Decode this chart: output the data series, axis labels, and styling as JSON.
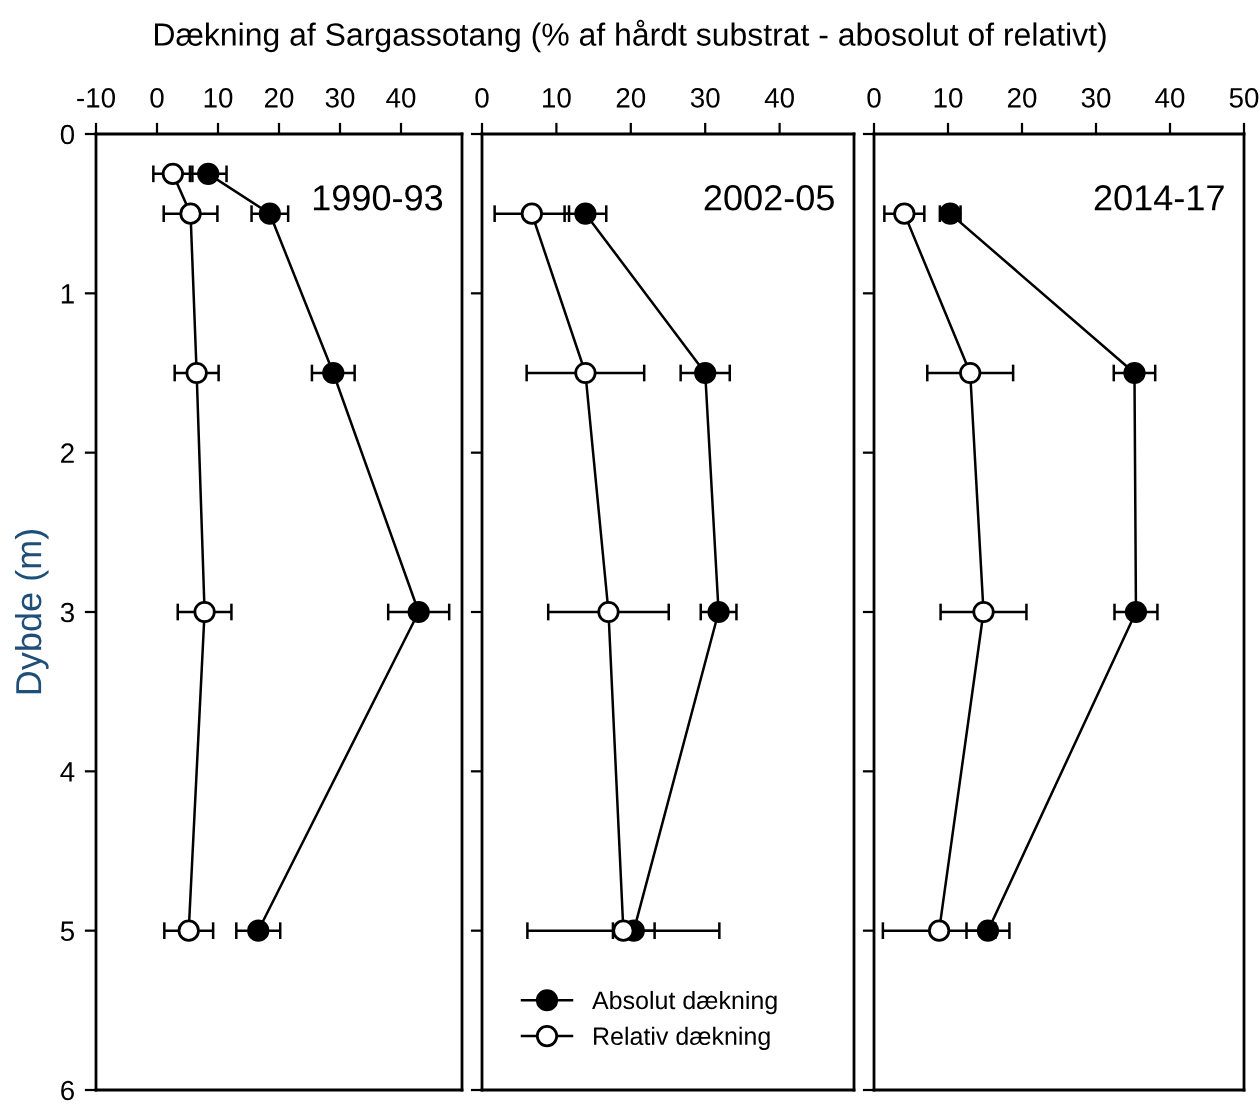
{
  "chart_data": [
    {
      "type": "line",
      "orientation": "horizontal",
      "title": "Dækning af Sargassotang (% af hårdt substrat - abosolut of relativt)",
      "ylabel": "Dybde (m)",
      "annotations": [
        "1990-93"
      ],
      "xlim": [
        -10,
        50
      ],
      "xticks": [
        -10,
        0,
        10,
        20,
        30,
        40
      ],
      "ylim": [
        6,
        0
      ],
      "yticks": [
        0,
        1,
        2,
        3,
        4,
        5,
        6
      ],
      "marker": "circle",
      "legend": false,
      "tick_labels": "xy",
      "series": [
        {
          "color": "#000000",
          "x": [
            0.25,
            0.5,
            1.5,
            3,
            5
          ],
          "values": [
            8.4,
            18.5,
            28.9,
            42.9,
            16.6
          ],
          "errors": [
            3,
            3,
            3.5,
            5,
            3.6
          ]
        },
        {
          "color": "#ffffff",
          "x": [
            0.25,
            0.5,
            1.5,
            3,
            5
          ],
          "values": [
            2.6,
            5.5,
            6.5,
            7.8,
            5.2
          ],
          "errors": [
            3.2,
            4.4,
            3.6,
            4.4,
            4
          ]
        }
      ]
    },
    {
      "type": "line",
      "orientation": "horizontal",
      "annotations": [
        "2002-05"
      ],
      "xlim": [
        0,
        50
      ],
      "xticks": [
        0,
        10,
        20,
        30,
        40
      ],
      "ylim": [
        6,
        0
      ],
      "yticks": [
        0,
        1,
        2,
        3,
        4,
        5,
        6
      ],
      "marker": "circle",
      "legend": "bottom left",
      "tick_labels": "x",
      "series": [
        {
          "name": "Absolut dækning",
          "color": "#000000",
          "x": [
            0.5,
            1.5,
            3,
            5
          ],
          "values": [
            13.9,
            30.0,
            31.8,
            20.4
          ],
          "errors": [
            2.8,
            3.3,
            2.4,
            2.8
          ]
        },
        {
          "name": "Relativ dækning",
          "color": "#ffffff",
          "x": [
            0.5,
            1.5,
            3,
            5
          ],
          "values": [
            6.7,
            13.9,
            17.0,
            19.0
          ],
          "errors": [
            5,
            7.9,
            8.1,
            12.9
          ]
        }
      ]
    },
    {
      "type": "line",
      "orientation": "horizontal",
      "annotations": [
        "2014-17"
      ],
      "xlim": [
        0,
        50
      ],
      "xticks": [
        0,
        10,
        20,
        30,
        40,
        50
      ],
      "ylim": [
        6,
        0
      ],
      "yticks": [
        0,
        1,
        2,
        3,
        4,
        5,
        6
      ],
      "marker": "circle",
      "legend": false,
      "tick_labels": "x",
      "series": [
        {
          "color": "#000000",
          "x": [
            0.5,
            1.5,
            3,
            5
          ],
          "values": [
            10.3,
            35.2,
            35.4,
            15.4
          ],
          "errors": [
            1.4,
            2.8,
            2.9,
            2.9
          ]
        },
        {
          "color": "#ffffff",
          "x": [
            0.5,
            1.5,
            3,
            5
          ],
          "values": [
            4.1,
            13.0,
            14.8,
            8.8
          ],
          "errors": [
            2.7,
            5.8,
            5.8,
            7.6
          ]
        }
      ]
    }
  ]
}
